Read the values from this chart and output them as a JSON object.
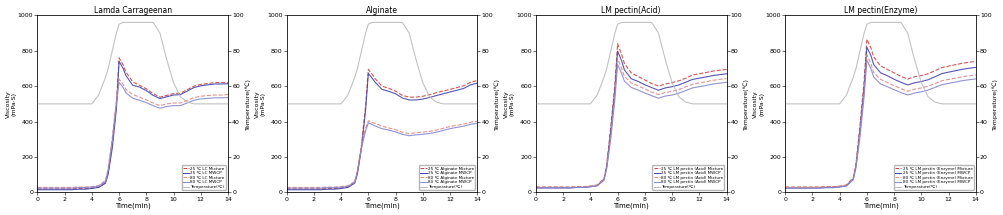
{
  "titles": [
    "Lamda Carrageenan",
    "Alginate",
    "LM pectin(Acid)",
    "LM pectin(Enzyme)"
  ],
  "xlabel": "Time(min)",
  "ylabel_left": "Viscosity\n(mPa·S)",
  "ylabel_right": "Temperature(℃)",
  "ylim_left": [
    0,
    1000
  ],
  "ylim_right": [
    0,
    100
  ],
  "xlim": [
    0,
    14
  ],
  "xticks": [
    0,
    2,
    4,
    6,
    8,
    10,
    12,
    14
  ],
  "yticks_left": [
    0,
    200,
    400,
    600,
    800,
    1000
  ],
  "yticks_right": [
    0,
    20,
    40,
    60,
    80,
    100
  ],
  "time": [
    0,
    0.5,
    1,
    1.5,
    2,
    2.5,
    3,
    3.5,
    4,
    4.5,
    5,
    5.2,
    5.5,
    5.8,
    6.0,
    6.3,
    6.5,
    7,
    7.5,
    8,
    8.5,
    9,
    9.5,
    10,
    10.5,
    11,
    11.5,
    12,
    12.5,
    13,
    13.5,
    14
  ],
  "temperature": [
    50,
    50,
    50,
    50,
    50,
    50,
    50,
    50,
    50,
    55,
    65,
    70,
    80,
    90,
    95,
    96,
    96,
    96,
    96,
    96,
    96,
    90,
    75,
    62,
    54,
    51,
    50,
    50,
    50,
    50,
    50,
    50
  ],
  "lc_25_mixture": [
    20,
    20,
    20,
    20,
    20,
    20,
    22,
    22,
    25,
    30,
    55,
    110,
    270,
    490,
    760,
    720,
    680,
    625,
    605,
    585,
    558,
    538,
    548,
    558,
    560,
    580,
    600,
    610,
    615,
    620,
    620,
    620
  ],
  "lc_25_mwcp": [
    15,
    15,
    15,
    15,
    15,
    15,
    18,
    18,
    22,
    28,
    52,
    105,
    250,
    470,
    740,
    700,
    660,
    605,
    595,
    575,
    548,
    530,
    540,
    550,
    552,
    572,
    592,
    602,
    607,
    612,
    612,
    614
  ],
  "lc_80_mixture": [
    28,
    28,
    28,
    28,
    28,
    28,
    30,
    30,
    33,
    38,
    68,
    135,
    310,
    520,
    640,
    610,
    582,
    553,
    538,
    523,
    505,
    490,
    500,
    505,
    505,
    520,
    535,
    543,
    547,
    550,
    550,
    553
  ],
  "lc_80_mwcp": [
    24,
    24,
    24,
    24,
    24,
    24,
    27,
    27,
    30,
    35,
    62,
    125,
    290,
    500,
    622,
    592,
    563,
    532,
    520,
    507,
    490,
    475,
    485,
    490,
    490,
    505,
    520,
    528,
    531,
    534,
    534,
    536
  ],
  "al_25_mixture": [
    20,
    20,
    20,
    20,
    20,
    20,
    22,
    22,
    25,
    30,
    58,
    115,
    270,
    490,
    695,
    665,
    642,
    600,
    588,
    572,
    548,
    538,
    538,
    543,
    552,
    563,
    573,
    582,
    592,
    602,
    622,
    632
  ],
  "al_25_mwcp": [
    15,
    15,
    15,
    15,
    15,
    15,
    18,
    18,
    22,
    28,
    52,
    105,
    252,
    468,
    672,
    643,
    622,
    582,
    571,
    557,
    533,
    522,
    522,
    527,
    536,
    547,
    557,
    567,
    577,
    587,
    607,
    617
  ],
  "al_80_mixture": [
    28,
    28,
    28,
    28,
    28,
    28,
    30,
    30,
    33,
    38,
    62,
    125,
    272,
    362,
    405,
    395,
    390,
    374,
    364,
    354,
    340,
    332,
    337,
    340,
    345,
    352,
    362,
    372,
    379,
    386,
    396,
    402
  ],
  "al_80_mwcp": [
    24,
    24,
    24,
    24,
    24,
    24,
    27,
    27,
    30,
    34,
    57,
    116,
    252,
    348,
    393,
    383,
    375,
    360,
    352,
    342,
    328,
    320,
    325,
    328,
    333,
    340,
    350,
    360,
    367,
    374,
    384,
    390
  ],
  "lma_25_mixture": [
    30,
    30,
    30,
    30,
    30,
    30,
    32,
    32,
    35,
    42,
    78,
    156,
    372,
    610,
    840,
    778,
    728,
    675,
    655,
    635,
    615,
    600,
    612,
    620,
    630,
    645,
    663,
    670,
    677,
    685,
    690,
    695
  ],
  "lma_25_mwcp": [
    25,
    25,
    25,
    25,
    25,
    25,
    28,
    28,
    32,
    38,
    73,
    147,
    350,
    582,
    798,
    742,
    692,
    642,
    627,
    608,
    592,
    577,
    590,
    597,
    607,
    622,
    638,
    645,
    652,
    660,
    665,
    670
  ],
  "lma_80_mixture": [
    30,
    30,
    30,
    30,
    30,
    30,
    32,
    32,
    35,
    40,
    73,
    142,
    323,
    552,
    755,
    700,
    655,
    618,
    602,
    584,
    567,
    552,
    564,
    571,
    581,
    596,
    611,
    618,
    625,
    633,
    638,
    643
  ],
  "lma_80_mwcp": [
    26,
    26,
    26,
    26,
    26,
    26,
    28,
    28,
    32,
    37,
    68,
    135,
    305,
    527,
    723,
    671,
    628,
    593,
    578,
    561,
    546,
    532,
    544,
    550,
    560,
    575,
    590,
    597,
    604,
    612,
    617,
    622
  ],
  "lme_25_mixture": [
    30,
    30,
    30,
    30,
    30,
    30,
    32,
    32,
    35,
    42,
    83,
    162,
    382,
    632,
    865,
    815,
    765,
    715,
    695,
    675,
    655,
    640,
    653,
    660,
    670,
    687,
    705,
    713,
    721,
    729,
    735,
    740
  ],
  "lme_25_mwcp": [
    25,
    25,
    25,
    25,
    25,
    25,
    28,
    28,
    32,
    38,
    76,
    152,
    358,
    598,
    820,
    772,
    722,
    676,
    659,
    639,
    622,
    607,
    619,
    626,
    636,
    653,
    671,
    679,
    687,
    695,
    701,
    706
  ],
  "lme_80_mixture": [
    28,
    28,
    28,
    28,
    28,
    28,
    30,
    30,
    33,
    39,
    76,
    148,
    338,
    570,
    778,
    725,
    678,
    638,
    621,
    603,
    586,
    571,
    583,
    590,
    600,
    615,
    630,
    638,
    645,
    653,
    658,
    663
  ],
  "lme_80_mwcp": [
    24,
    24,
    24,
    24,
    24,
    24,
    26,
    26,
    30,
    36,
    71,
    140,
    318,
    544,
    748,
    698,
    651,
    613,
    597,
    580,
    564,
    550,
    561,
    568,
    578,
    593,
    608,
    616,
    623,
    631,
    636,
    641
  ],
  "colors": {
    "c25_mixture": "#cc4444",
    "c25_mwcp": "#4444aa",
    "c80_mixture": "#dd8888",
    "c80_mwcp": "#8888cc",
    "temperature": "#bbbbbb"
  },
  "legend_labels": {
    "lc": [
      "25 ℃ LC Mixture",
      "25 ℃ LC MWCP",
      "80 ℃ LC Mixture",
      "80 ℃ LC MWCP",
      "Temperature(℃)"
    ],
    "al": [
      "25 ℃ Alginate Mixture",
      "25 ℃ Alginate MWCP",
      "80 ℃ Alginate Mixture",
      "80 ℃ Alginate MWCP",
      "Temperature(℃)"
    ],
    "lma": [
      "25 ℃ LM pectin (Acid) Mixture",
      "25 ℃ LM pectin (Acid) MWCP",
      "80 ℃ LM pectin (Acid) Mixture",
      "80 ℃ LM pectin (Acid) MWCP",
      "Temperature(℃)"
    ],
    "lme": [
      "25 ℃ LM pectin (Enzyme) Mixture",
      "25 ℃ LM pectin (Enzyme) MWCP",
      "80 ℃ LM pectin (Enzyme) Mixture",
      "80 ℃ LM pectin (Enzyme) MWCP",
      "Temperature(℃)"
    ]
  }
}
